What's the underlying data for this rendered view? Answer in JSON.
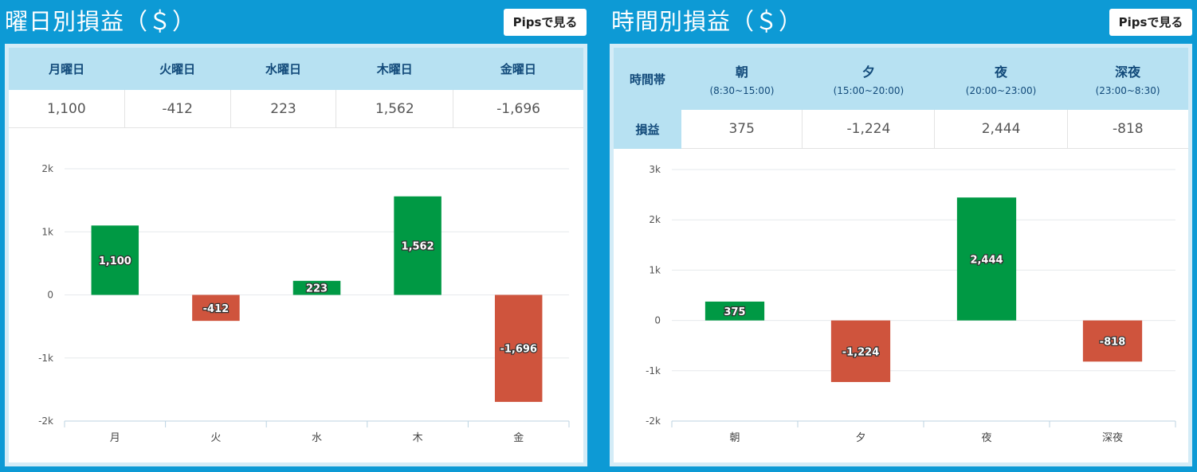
{
  "colors": {
    "positive": "#009944",
    "negative": "#cf543d",
    "header_bg": "#b7e1f2",
    "frame": "#0d9ad5"
  },
  "weekday": {
    "title": "曜日別損益（＄）",
    "pips_button": "Pipsで見る",
    "headers": [
      "月曜日",
      "火曜日",
      "水曜日",
      "木曜日",
      "金曜日"
    ],
    "values": [
      "1,100",
      "-412",
      "223",
      "1,562",
      "-1,696"
    ]
  },
  "hourly": {
    "title": "時間別損益（＄）",
    "pips_button": "Pipsで見る",
    "row_header_slot": "時間帯",
    "row_header_value": "損益",
    "slots": [
      {
        "name": "朝",
        "range": "(8:30~15:00)"
      },
      {
        "name": "夕",
        "range": "(15:00~20:00)"
      },
      {
        "name": "夜",
        "range": "(20:00~23:00)"
      },
      {
        "name": "深夜",
        "range": "(23:00~8:30)"
      }
    ],
    "values": [
      "375",
      "-1,224",
      "2,444",
      "-818"
    ]
  },
  "chart_data": [
    {
      "type": "bar",
      "title": "曜日別損益（＄）",
      "categories": [
        "月",
        "火",
        "水",
        "木",
        "金"
      ],
      "values": [
        1100,
        -412,
        223,
        1562,
        -1696
      ],
      "value_labels": [
        "1,100",
        "-412",
        "223",
        "1,562",
        "-1,696"
      ],
      "ylim": [
        -2000,
        2000
      ],
      "yticks": [
        2000,
        1000,
        0,
        -1000,
        -2000
      ],
      "ytick_labels": [
        "2k",
        "1k",
        "0",
        "-1k",
        "-2k"
      ],
      "grid": true,
      "xlabel": "",
      "ylabel": ""
    },
    {
      "type": "bar",
      "title": "時間別損益（＄）",
      "categories": [
        "朝",
        "夕",
        "夜",
        "深夜"
      ],
      "values": [
        375,
        -1224,
        2444,
        -818
      ],
      "value_labels": [
        "375",
        "-1,224",
        "2,444",
        "-818"
      ],
      "ylim": [
        -2000,
        3000
      ],
      "yticks": [
        3000,
        2000,
        1000,
        0,
        -1000,
        -2000
      ],
      "ytick_labels": [
        "3k",
        "2k",
        "1k",
        "0",
        "-1k",
        "-2k"
      ],
      "grid": true,
      "xlabel": "",
      "ylabel": ""
    }
  ]
}
